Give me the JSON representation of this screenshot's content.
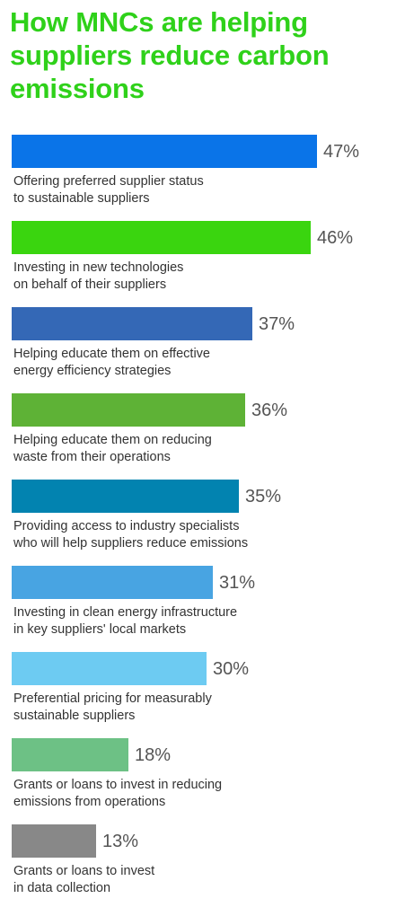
{
  "title": "How MNCs are helping suppliers reduce carbon emissions",
  "chart_data": {
    "type": "bar",
    "orientation": "horizontal",
    "title": "How MNCs are helping suppliers reduce carbon emissions",
    "unit": "%",
    "xlim": [
      0,
      47
    ],
    "categories": [
      [
        "Offering preferred supplier status",
        "to sustainable suppliers"
      ],
      [
        "Investing in new technologies",
        "on behalf of their suppliers"
      ],
      [
        "Helping educate them on effective",
        "energy efficiency strategies"
      ],
      [
        "Helping educate them on reducing",
        "waste from their operations"
      ],
      [
        "Providing access to industry specialists",
        "who will help suppliers reduce emissions"
      ],
      [
        "Investing in clean energy infrastructure",
        "in key suppliers' local markets"
      ],
      [
        "Preferential pricing for measurably",
        "sustainable suppliers"
      ],
      [
        "Grants or loans to invest in reducing",
        "emissions from operations"
      ],
      [
        "Grants or loans to invest",
        "in data collection"
      ]
    ],
    "values": [
      47,
      46,
      37,
      36,
      35,
      31,
      30,
      18,
      13
    ],
    "value_labels": [
      "47%",
      "46%",
      "37%",
      "36%",
      "35%",
      "31%",
      "30%",
      "18%",
      "13%"
    ],
    "colors": [
      "#0a74e8",
      "#3ad50f",
      "#3468b6",
      "#5eb236",
      "#0283b0",
      "#48a4e2",
      "#6dcbf2",
      "#6dc185",
      "#888888"
    ]
  }
}
